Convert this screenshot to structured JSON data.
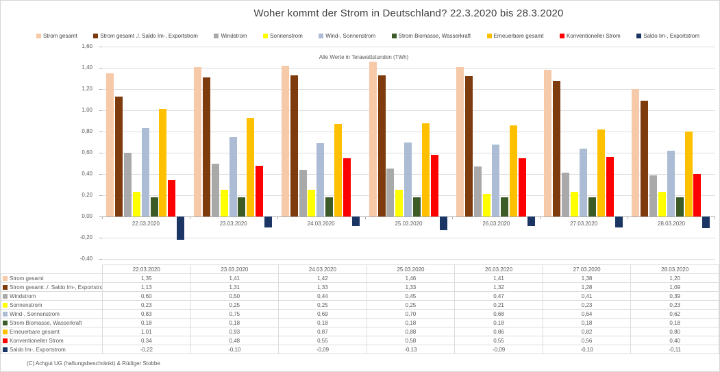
{
  "footer": "(C) Achgut UG (haftungsbeschränkt) & Rüdiger Stobbe",
  "chart_data": {
    "type": "bar",
    "title": "Woher kommt der Strom in Deutschland? 22.3.2020 bis 28.3.2020",
    "annotation": "Alle Werte in Terawattstunden (TWh)",
    "unit": "TWh",
    "decimal_separator": ",",
    "categories": [
      "22.03.2020",
      "23.03.2020",
      "24.03.2020",
      "25.03.2020",
      "26.03.2020",
      "27.03.2020",
      "28.03.2020"
    ],
    "series": [
      {
        "name": "Strom gesamt",
        "color": "#F6C9A9",
        "values": [
          1.35,
          1.41,
          1.42,
          1.46,
          1.41,
          1.38,
          1.2
        ]
      },
      {
        "name": "Strom gesamt ./. Saldo Im-, Exportstrom",
        "color": "#7E3B0E",
        "values": [
          1.13,
          1.31,
          1.33,
          1.33,
          1.32,
          1.28,
          1.09
        ]
      },
      {
        "name": "Windstrom",
        "color": "#A9A9A9",
        "values": [
          0.6,
          0.5,
          0.44,
          0.45,
          0.47,
          0.41,
          0.39
        ]
      },
      {
        "name": "Sonnenstrom",
        "color": "#FFFF00",
        "values": [
          0.23,
          0.25,
          0.25,
          0.25,
          0.21,
          0.23,
          0.23
        ]
      },
      {
        "name": "Wind-, Sonnenstrom",
        "color": "#ACBCD4",
        "values": [
          0.83,
          0.75,
          0.69,
          0.7,
          0.68,
          0.64,
          0.62
        ]
      },
      {
        "name": "Strom Biomasse, Wasserkraft",
        "color": "#3C5B26",
        "values": [
          0.18,
          0.18,
          0.18,
          0.18,
          0.18,
          0.18,
          0.18
        ]
      },
      {
        "name": "Erneuerbare gesamt",
        "color": "#FFC000",
        "values": [
          1.01,
          0.93,
          0.87,
          0.88,
          0.86,
          0.82,
          0.8
        ]
      },
      {
        "name": "Konventioneller Strom",
        "color": "#FF0000",
        "values": [
          0.34,
          0.48,
          0.55,
          0.58,
          0.55,
          0.56,
          0.4
        ]
      },
      {
        "name": "Saldo Im-, Exportstrom",
        "color": "#1B3564",
        "values": [
          -0.22,
          -0.1,
          -0.09,
          -0.13,
          -0.09,
          -0.1,
          -0.11
        ]
      }
    ],
    "ylim": [
      -0.4,
      1.6
    ],
    "ytick_step": 0.2,
    "grid": true,
    "legend_position": "top"
  }
}
